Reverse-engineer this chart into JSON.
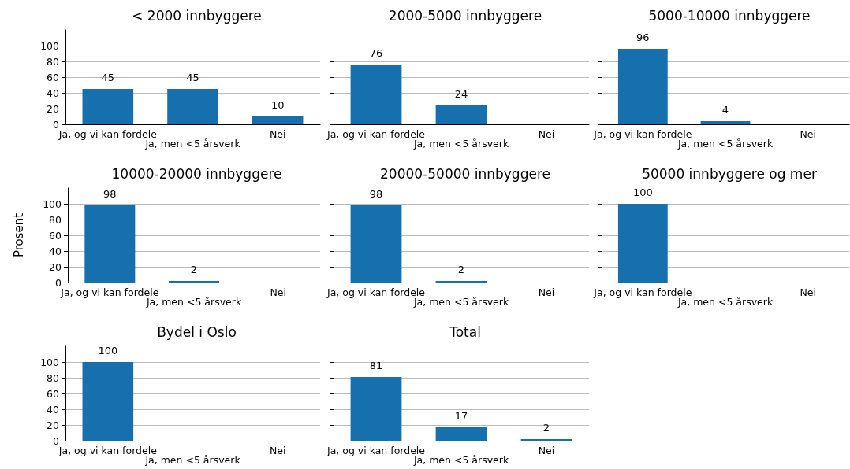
{
  "chart_data": [
    {
      "type": "bar",
      "title": "< 2000 innbyggere",
      "categories": [
        "Ja, og vi kan fordele",
        "Ja, men <5 årsverk",
        "Nei"
      ],
      "values": [
        45,
        45,
        10
      ],
      "value_labels": [
        "45",
        "45",
        "10"
      ],
      "color": "#1570ad",
      "ylim": [
        0,
        120
      ],
      "yticks": [
        0,
        20,
        40,
        60,
        80,
        100
      ],
      "grid": "y"
    },
    {
      "type": "bar",
      "title": "2000-5000 innbyggere",
      "categories": [
        "Ja, og vi kan fordele",
        "Ja, men <5 årsverk",
        "Nei"
      ],
      "values": [
        76,
        24,
        0
      ],
      "value_labels": [
        "76",
        "24",
        null
      ],
      "color": "#1570ad",
      "ylim": [
        0,
        120
      ],
      "yticks": [
        0,
        20,
        40,
        60,
        80,
        100
      ],
      "grid": "y",
      "tick_labels": "x"
    },
    {
      "type": "bar",
      "title": "5000-10000 innbyggere",
      "categories": [
        "Ja, og vi kan fordele",
        "Ja, men <5 årsverk",
        "Nei"
      ],
      "values": [
        96,
        4,
        0
      ],
      "value_labels": [
        "96",
        "4",
        null
      ],
      "color": "#1570ad",
      "ylim": [
        0,
        120
      ],
      "yticks": [
        0,
        20,
        40,
        60,
        80,
        100
      ],
      "grid": "y",
      "tick_labels": "x"
    },
    {
      "type": "bar",
      "title": "10000-20000 innbyggere",
      "ylabel": "Prosent",
      "categories": [
        "Ja, og vi kan fordele",
        "Ja, men <5 årsverk",
        "Nei"
      ],
      "values": [
        98,
        2,
        0
      ],
      "value_labels": [
        "98",
        "2",
        null
      ],
      "color": "#1570ad",
      "ylim": [
        0,
        120
      ],
      "yticks": [
        0,
        20,
        40,
        60,
        80,
        100
      ],
      "grid": "y"
    },
    {
      "type": "bar",
      "title": "20000-50000 innbyggere",
      "categories": [
        "Ja, og vi kan fordele",
        "Ja, men <5 årsverk",
        "Nei"
      ],
      "values": [
        98,
        2,
        0
      ],
      "value_labels": [
        "98",
        "2",
        null
      ],
      "color": "#1570ad",
      "ylim": [
        0,
        120
      ],
      "yticks": [
        0,
        20,
        40,
        60,
        80,
        100
      ],
      "grid": "y",
      "tick_labels": "x"
    },
    {
      "type": "bar",
      "title": "50000 innbyggere og mer",
      "categories": [
        "Ja, og vi kan fordele",
        "Ja, men <5 årsverk",
        "Nei"
      ],
      "values": [
        100,
        0,
        0
      ],
      "value_labels": [
        "100",
        null,
        null
      ],
      "color": "#1570ad",
      "ylim": [
        0,
        120
      ],
      "yticks": [
        0,
        20,
        40,
        60,
        80,
        100
      ],
      "grid": "y",
      "tick_labels": "x"
    },
    {
      "type": "bar",
      "title": "Bydel i Oslo",
      "categories": [
        "Ja, og vi kan fordele",
        "Ja, men <5 årsverk",
        "Nei"
      ],
      "values": [
        100,
        0,
        0
      ],
      "value_labels": [
        "100",
        null,
        null
      ],
      "color": "#1570ad",
      "ylim": [
        0,
        120
      ],
      "yticks": [
        0,
        20,
        40,
        60,
        80,
        100
      ],
      "grid": "y"
    },
    {
      "type": "bar",
      "title": "Total",
      "categories": [
        "Ja, og vi kan fordele",
        "Ja, men <5 årsverk",
        "Nei"
      ],
      "values": [
        81,
        17,
        2
      ],
      "value_labels": [
        "81",
        "17",
        "2"
      ],
      "color": "#1570ad",
      "ylim": [
        0,
        120
      ],
      "yticks": [
        0,
        20,
        40,
        60,
        80,
        100
      ],
      "grid": "y",
      "tick_labels": "x"
    }
  ]
}
